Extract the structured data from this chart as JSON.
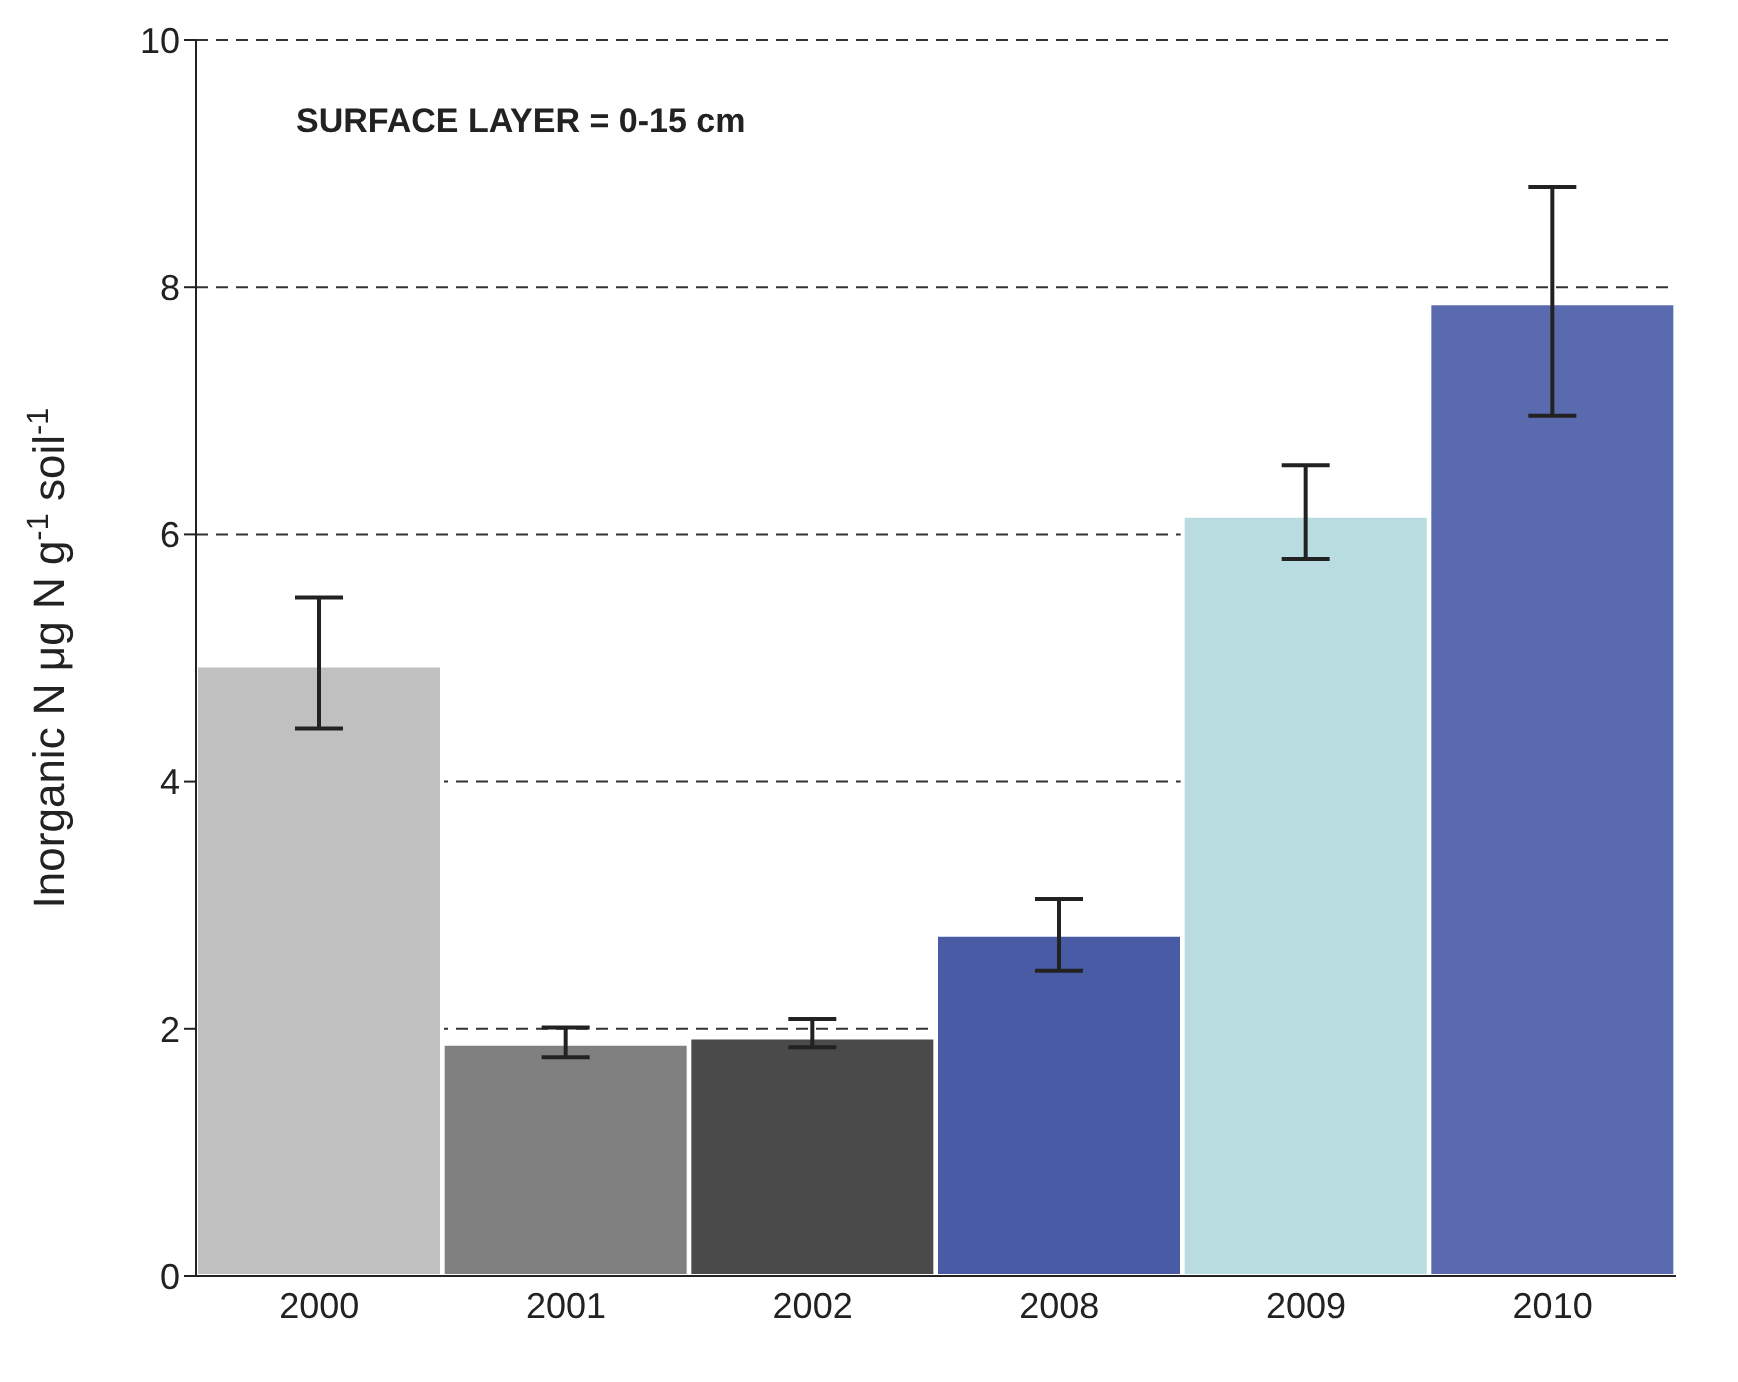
{
  "chart_data": {
    "type": "bar",
    "ylabel": "Inorganic N     μg N g$^{-1}$ soil$^{-1}$",
    "annotations": [
      "SURFACE LAYER = 0-15 cm"
    ],
    "categories": [
      "2000",
      "2001",
      "2002",
      "2008",
      "2009",
      "2010"
    ],
    "values": [
      4.94,
      1.88,
      1.93,
      2.76,
      6.15,
      7.87
    ],
    "errors": [
      [
        4.43,
        5.49
      ],
      [
        1.77,
        2.01
      ],
      [
        1.85,
        2.08
      ],
      [
        2.47,
        3.05
      ],
      [
        5.8,
        6.56
      ],
      [
        6.96,
        8.81
      ]
    ],
    "colors": [
      "#c0c0c0",
      "#808080",
      "#4a4a4a",
      "#4a5ba5",
      "#b8dcdf",
      "#5a6aae"
    ],
    "ylim": [
      0,
      10
    ],
    "yticks": [
      0,
      2,
      4,
      6,
      8,
      10
    ],
    "grid": "y",
    "line_style": "dashed"
  }
}
